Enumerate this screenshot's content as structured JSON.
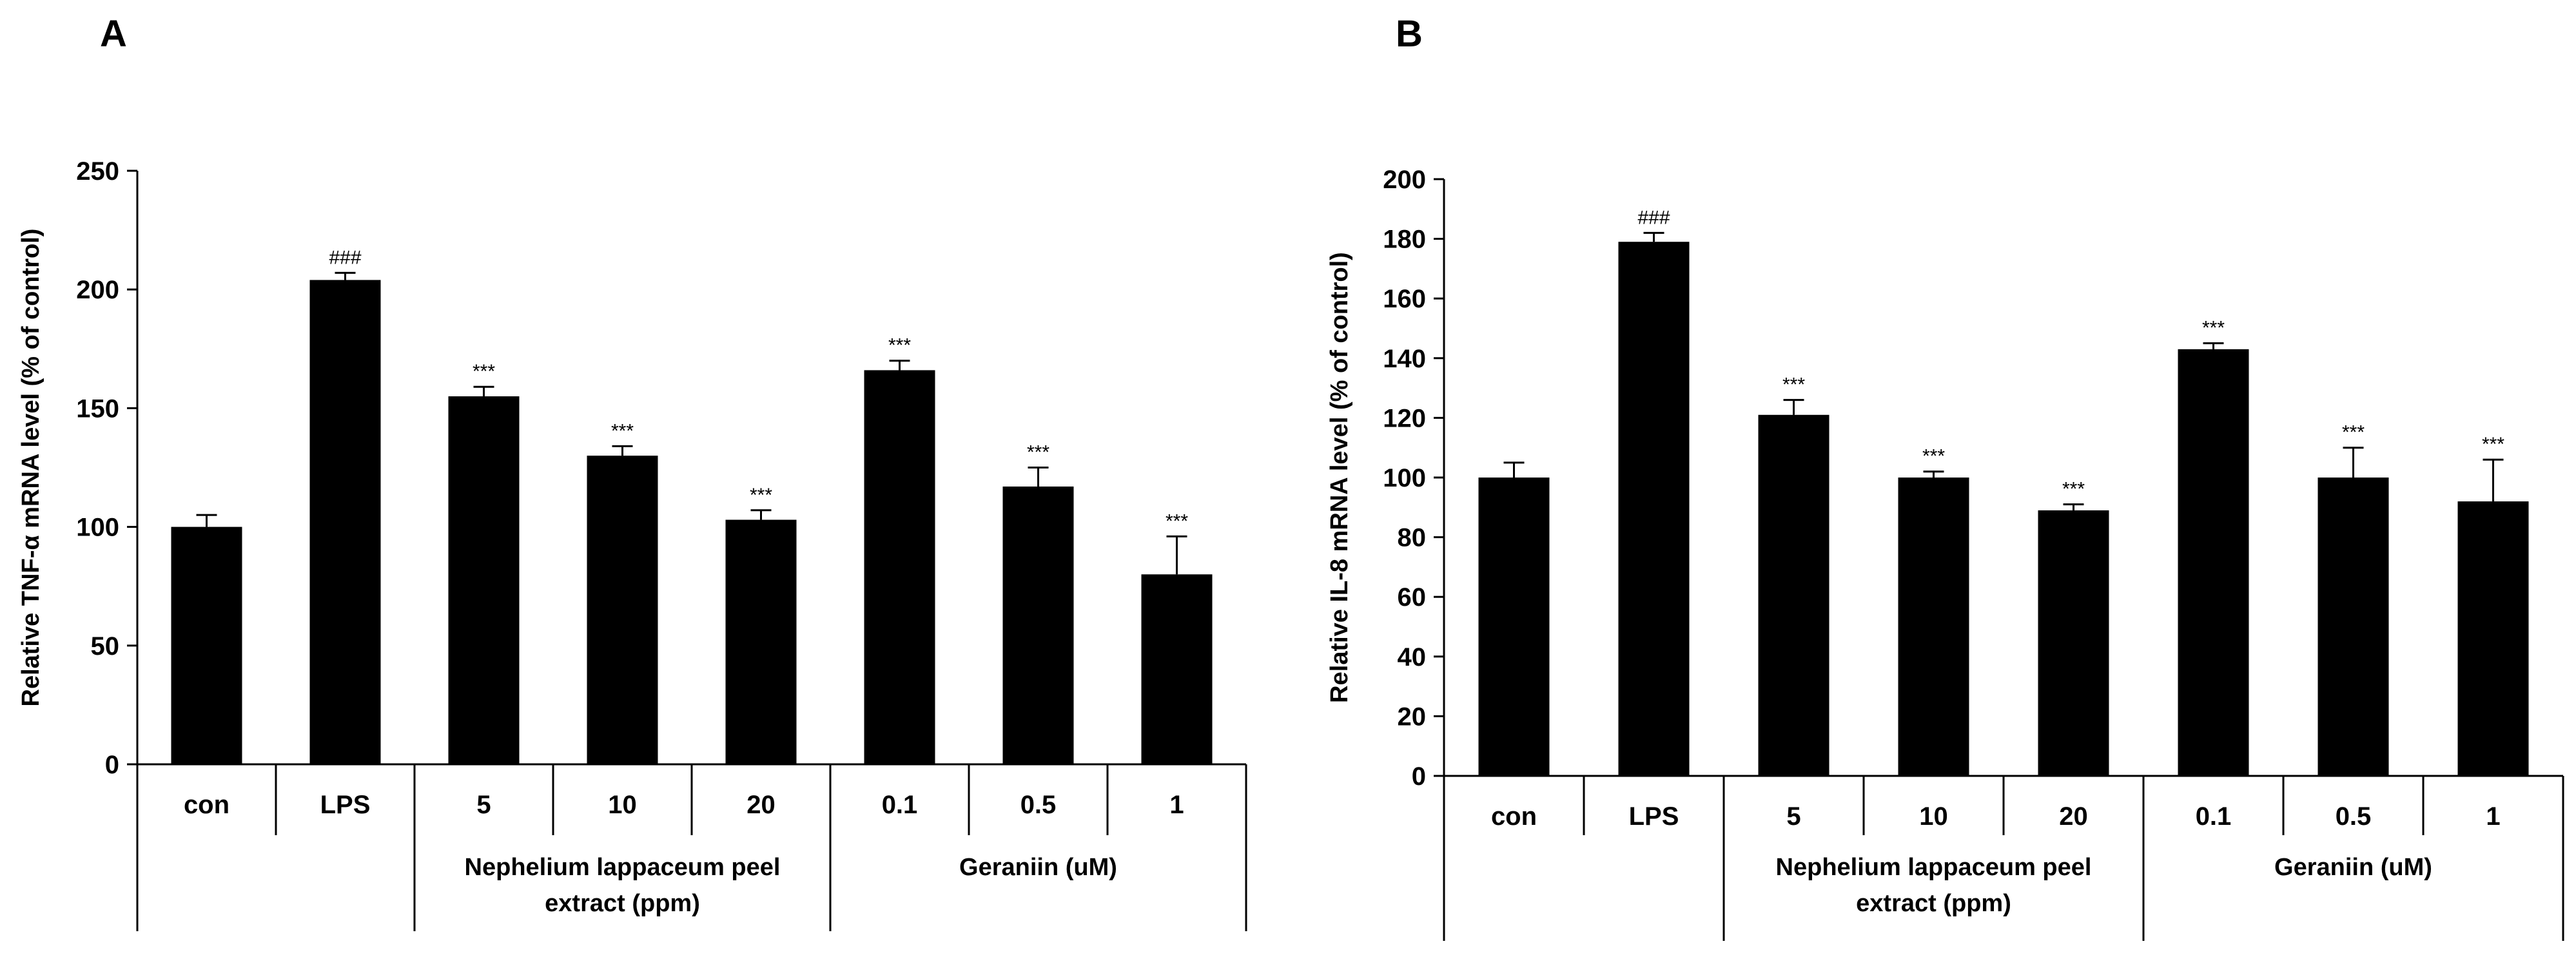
{
  "chart_data": [
    {
      "panel": "A",
      "type": "bar",
      "ylabel": "Relative TNF-α  mRNA level (% of control)",
      "ylim": [
        0,
        250
      ],
      "yticks": [
        0,
        50,
        100,
        150,
        200,
        250
      ],
      "categories": [
        "con",
        "LPS",
        "5",
        "10",
        "20",
        "0.1",
        "0.5",
        "1"
      ],
      "values": [
        100,
        204,
        155,
        130,
        103,
        166,
        117,
        80
      ],
      "errors": [
        5,
        3,
        4,
        4,
        4,
        4,
        8,
        16
      ],
      "significance": [
        "",
        "###",
        "***",
        "***",
        "***",
        "***",
        "***",
        "***"
      ],
      "groups": [
        {
          "label_lines": [
            "Nephelium lappaceum peel",
            "extract  (ppm)"
          ],
          "start": 2,
          "end": 4
        },
        {
          "label_lines": [
            "Geraniin (uM)"
          ],
          "start": 5,
          "end": 7
        }
      ]
    },
    {
      "panel": "B",
      "type": "bar",
      "ylabel": "Relative IL-8  mRNA level (% of control)",
      "ylim": [
        0,
        200
      ],
      "yticks": [
        0,
        20,
        40,
        60,
        80,
        100,
        120,
        140,
        160,
        180,
        200
      ],
      "categories": [
        "con",
        "LPS",
        "5",
        "10",
        "20",
        "0.1",
        "0.5",
        "1"
      ],
      "values": [
        100,
        179,
        121,
        100,
        89,
        143,
        100,
        92
      ],
      "errors": [
        5,
        3,
        5,
        2,
        2,
        2,
        10,
        14
      ],
      "significance": [
        "",
        "###",
        "***",
        "***",
        "***",
        "***",
        "***",
        "***"
      ],
      "groups": [
        {
          "label_lines": [
            "Nephelium lappaceum peel",
            "extract  (ppm)"
          ],
          "start": 2,
          "end": 4
        },
        {
          "label_lines": [
            "Geraniin (uM)"
          ],
          "start": 5,
          "end": 7
        }
      ]
    }
  ]
}
